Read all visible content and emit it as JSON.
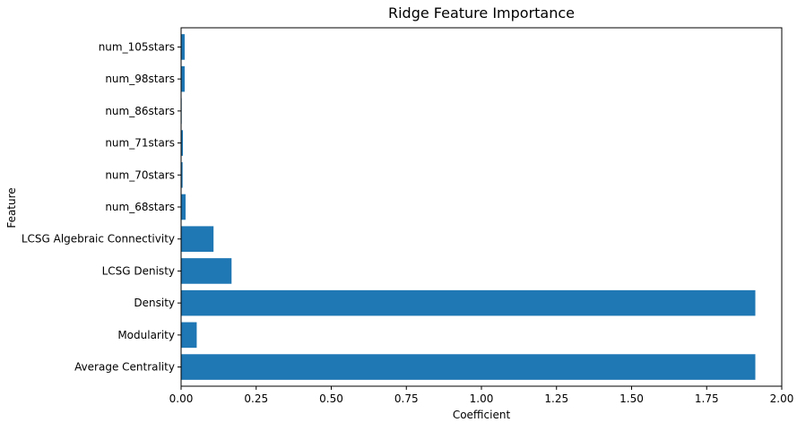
{
  "chart_data": {
    "type": "bar",
    "orientation": "horizontal",
    "title": "Ridge Feature Importance",
    "xlabel": "Coefficient",
    "ylabel": "Feature",
    "categories": [
      "Average Centrality",
      "Modularity",
      "Density",
      "LCSG Denisty",
      "LCSG Algebraic Connectivity",
      "num_68stars",
      "num_70stars",
      "num_71stars",
      "num_86stars",
      "num_98stars",
      "num_105stars"
    ],
    "values": [
      1.912,
      0.052,
      1.912,
      0.168,
      0.108,
      0.015,
      0.005,
      0.006,
      0.002,
      0.012,
      0.012
    ],
    "xlim": [
      0,
      2.0
    ],
    "xticks": [
      0.0,
      0.25,
      0.5,
      0.75,
      1.0,
      1.25,
      1.5,
      1.75,
      2.0
    ],
    "xtick_labels": [
      "0.00",
      "0.25",
      "0.50",
      "0.75",
      "1.00",
      "1.25",
      "1.50",
      "1.75",
      "2.00"
    ],
    "bar_color": "#1f77b4",
    "grid": false,
    "legend": "none"
  }
}
